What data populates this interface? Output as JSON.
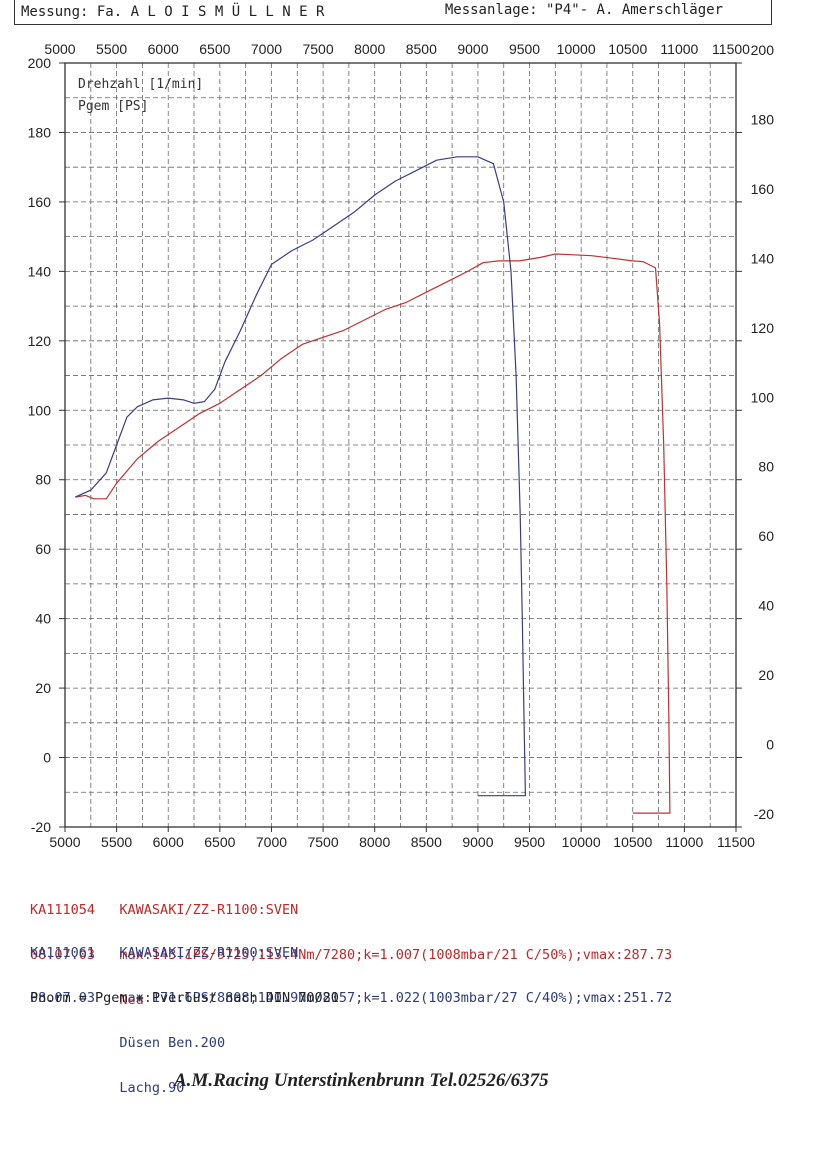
{
  "header": {
    "left": "Messung: Fa. A L O I S   M Ü L L N E R",
    "right": "Messanlage: \"P4\"- A. Amerschläger"
  },
  "chart_data": {
    "type": "line",
    "x_ticks": [
      5000,
      5500,
      6000,
      6500,
      7000,
      7500,
      8000,
      8500,
      9000,
      9500,
      10000,
      10500,
      11000,
      11500
    ],
    "xlim": [
      5000,
      11500
    ],
    "ylim": [
      -20,
      200
    ],
    "y_ticks_left": [
      -20,
      0,
      20,
      40,
      60,
      80,
      100,
      120,
      140,
      160,
      180,
      200
    ],
    "y_ticks_right": [
      -20,
      0,
      20,
      40,
      60,
      80,
      100,
      120,
      140,
      160,
      180,
      200
    ],
    "legend": [
      "Drehzahl [1/min]",
      "Pgem [PS]"
    ],
    "grid": true,
    "series": [
      {
        "color": "#c03030",
        "points": [
          [
            5100,
            75
          ],
          [
            5200,
            75.5
          ],
          [
            5280,
            74.5
          ],
          [
            5400,
            74.5
          ],
          [
            5500,
            79
          ],
          [
            5700,
            86
          ],
          [
            5900,
            91
          ],
          [
            6100,
            95
          ],
          [
            6300,
            99
          ],
          [
            6500,
            102
          ],
          [
            6700,
            106
          ],
          [
            6900,
            110
          ],
          [
            7100,
            115
          ],
          [
            7300,
            119
          ],
          [
            7500,
            121
          ],
          [
            7700,
            123
          ],
          [
            7900,
            126
          ],
          [
            8100,
            129
          ],
          [
            8300,
            131
          ],
          [
            8500,
            134
          ],
          [
            8700,
            137
          ],
          [
            8900,
            140
          ],
          [
            9050,
            142.5
          ],
          [
            9200,
            143
          ],
          [
            9400,
            143
          ],
          [
            9600,
            144
          ],
          [
            9750,
            145
          ],
          [
            9900,
            144.8
          ],
          [
            10100,
            144.5
          ],
          [
            10300,
            143.8
          ],
          [
            10500,
            143
          ],
          [
            10600,
            142.8
          ],
          [
            10720,
            141
          ],
          [
            10760,
            125
          ],
          [
            10800,
            90
          ],
          [
            10830,
            50
          ],
          [
            10850,
            10
          ],
          [
            10860,
            -16
          ],
          [
            10850,
            -16
          ],
          [
            10700,
            -16
          ],
          [
            10500,
            -16
          ]
        ]
      },
      {
        "color": "#3a3d86",
        "points": [
          [
            5100,
            75
          ],
          [
            5250,
            77
          ],
          [
            5400,
            82
          ],
          [
            5500,
            90
          ],
          [
            5600,
            98
          ],
          [
            5700,
            101
          ],
          [
            5850,
            103
          ],
          [
            6000,
            103.5
          ],
          [
            6150,
            103
          ],
          [
            6250,
            102
          ],
          [
            6350,
            102.5
          ],
          [
            6450,
            106
          ],
          [
            6550,
            114
          ],
          [
            6700,
            123
          ],
          [
            6850,
            133
          ],
          [
            7000,
            142
          ],
          [
            7200,
            146
          ],
          [
            7400,
            149
          ],
          [
            7600,
            153
          ],
          [
            7800,
            157
          ],
          [
            8000,
            162
          ],
          [
            8200,
            166
          ],
          [
            8400,
            169
          ],
          [
            8600,
            172
          ],
          [
            8800,
            173
          ],
          [
            9000,
            173
          ],
          [
            9150,
            171
          ],
          [
            9250,
            160
          ],
          [
            9320,
            140
          ],
          [
            9370,
            110
          ],
          [
            9410,
            70
          ],
          [
            9430,
            40
          ],
          [
            9450,
            5
          ],
          [
            9460,
            -11
          ],
          [
            9400,
            -11
          ],
          [
            9300,
            -11
          ],
          [
            9200,
            -11
          ],
          [
            9000,
            -11
          ]
        ]
      }
    ]
  },
  "tests": [
    {
      "id": "KA111054",
      "date": "08.07.03",
      "vehicle": "KAWASAKI/ZZ-R1100:SVEN",
      "specs": "max:143.1PS/9725;113.4Nm/7280;k=1.007(1008mbar/21 C/50%);vmax:287.73",
      "note": "Neu"
    },
    {
      "id": "KA111061",
      "date": "08.07.03",
      "vehicle": "KAWASAKI/ZZ-R1100:SVEN",
      "specs": "max:171.6PS/8808;140.9Nm/8157;k=1.022(1003mbar/27 C/40%);vmax:251.72",
      "note1": "Düsen Ben.200",
      "note2": "Lachg.90"
    }
  ],
  "pnorm": "Pnorm = Pgem + Pverlust nach DIN 70020",
  "footer": "A.M.Racing Unterstinkenbrunn  Tel.02526/6375"
}
